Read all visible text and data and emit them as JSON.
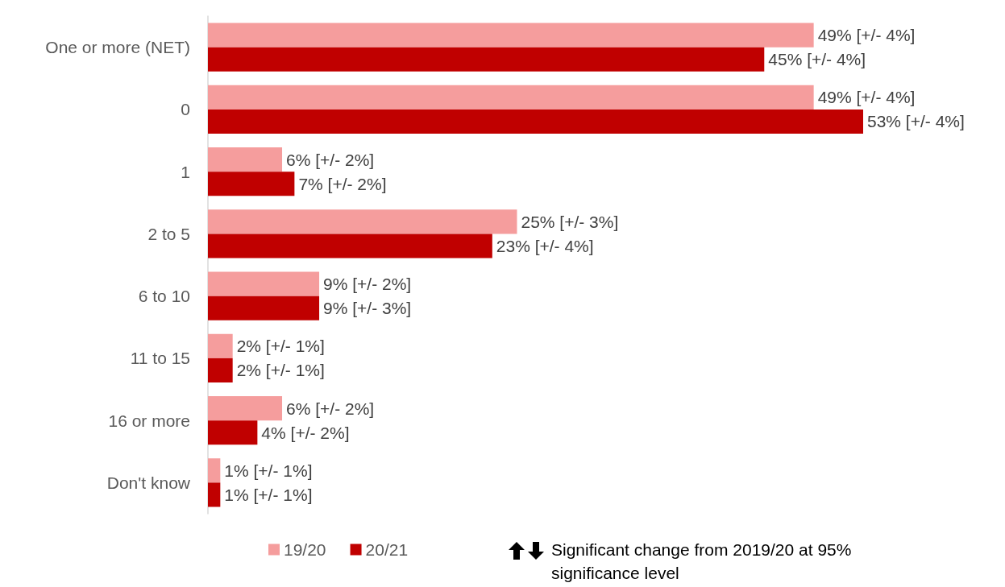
{
  "chart_data": {
    "type": "bar",
    "orientation": "horizontal",
    "categories": [
      "One or more (NET)",
      "0",
      "1",
      "2 to 5",
      "6 to 10",
      "11 to 15",
      "16 or more",
      "Don't know"
    ],
    "series": [
      {
        "name": "19/20",
        "color": "#f59d9d",
        "values": [
          49,
          49,
          6,
          25,
          9,
          2,
          6,
          1
        ],
        "value_labels": [
          "49% [+/- 4%]",
          "49% [+/- 4%]",
          "6% [+/- 2%]",
          "25% [+/- 3%]",
          "9% [+/- 2%]",
          "2% [+/- 1%]",
          "6% [+/- 2%]",
          "1% [+/- 1%]"
        ]
      },
      {
        "name": "20/21",
        "color": "#c00000",
        "values": [
          45,
          53,
          7,
          23,
          9,
          2,
          4,
          1
        ],
        "value_labels": [
          "45% [+/- 4%]",
          "53% [+/- 4%]",
          "7% [+/- 2%]",
          "23% [+/- 4%]",
          "9% [+/- 3%]",
          "2% [+/- 1%]",
          "4% [+/- 2%]",
          "1% [+/- 1%]"
        ]
      }
    ],
    "legend": "bottom",
    "grid": false,
    "annotations": [
      "Significant change from 2019/20 at 95% significance level"
    ]
  }
}
